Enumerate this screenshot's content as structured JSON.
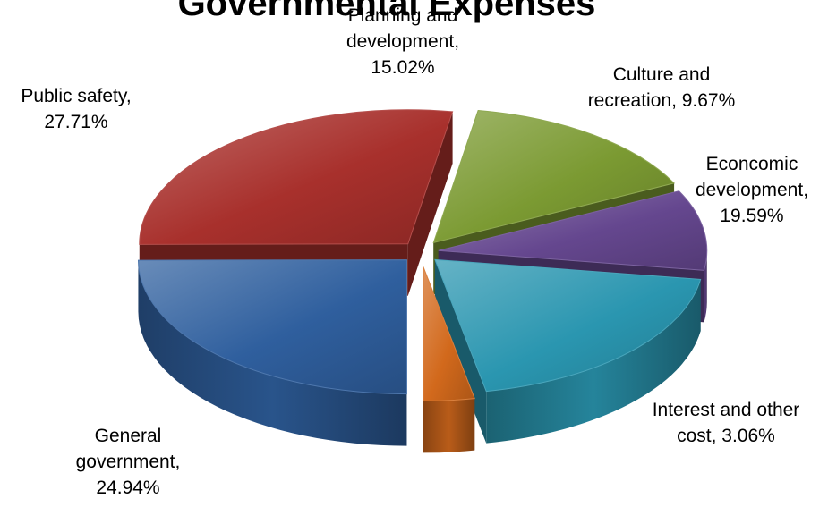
{
  "chart_data": {
    "type": "pie",
    "variant": "3d-exploded",
    "title": "Governmental Expenses",
    "slices": [
      {
        "label": "General government",
        "value": 24.94,
        "text": [
          "General",
          "government,",
          "24.94%"
        ],
        "color": "#2f5f9e",
        "icon": "slice-general-government"
      },
      {
        "label": "Public safety",
        "value": 27.71,
        "text": [
          "Public safety,",
          "27.71%"
        ],
        "color": "#a8302c",
        "icon": "slice-public-safety"
      },
      {
        "label": "Planning and development",
        "value": 15.02,
        "text": [
          "Planning and",
          "development,",
          "15.02%"
        ],
        "color": "#7b9a32",
        "icon": "slice-planning"
      },
      {
        "label": "Culture and recreation",
        "value": 9.67,
        "text": [
          "Culture and",
          "recreation, 9.67%"
        ],
        "color": "#65478f",
        "icon": "slice-culture"
      },
      {
        "label": "Econcomic development",
        "value": 19.59,
        "text": [
          "Econcomic",
          "development,",
          "19.59%"
        ],
        "color": "#2a96b0",
        "icon": "slice-economic"
      },
      {
        "label": "Interest and other cost",
        "value": 3.06,
        "text": [
          "Interest and other",
          "cost, 3.06%"
        ],
        "color": "#d2691c",
        "icon": "slice-interest"
      }
    ]
  }
}
